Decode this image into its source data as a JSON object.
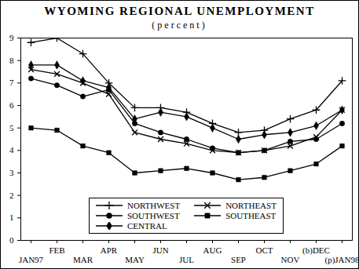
{
  "chart_data": {
    "type": "line",
    "title": "WYOMING REGIONAL UNEMPLOYMENT",
    "subtitle": "(percent)",
    "categories": [
      "JAN97",
      "FEB",
      "MAR",
      "APR",
      "MAY",
      "JUN",
      "JUL",
      "AUG",
      "SEP",
      "OCT",
      "NOV",
      "(b)DEC",
      "(p)JAN98"
    ],
    "series": [
      {
        "name": "NORTHWEST",
        "color": "#000000",
        "marker": "plus",
        "values": [
          8.8,
          9.0,
          8.3,
          7.0,
          5.9,
          5.9,
          5.7,
          5.2,
          4.8,
          4.9,
          5.4,
          5.8,
          7.1
        ]
      },
      {
        "name": "NORTHEAST",
        "color": "#000000",
        "marker": "times",
        "values": [
          7.6,
          7.4,
          7.0,
          6.5,
          4.8,
          4.5,
          4.3,
          4.0,
          3.9,
          4.0,
          4.2,
          4.6,
          5.8
        ]
      },
      {
        "name": "SOUTHWEST",
        "color": "#000000",
        "marker": "circle",
        "values": [
          7.2,
          6.9,
          6.4,
          6.7,
          5.2,
          4.8,
          4.5,
          4.1,
          3.9,
          4.0,
          4.4,
          4.5,
          5.2
        ]
      },
      {
        "name": "SOUTHEAST",
        "color": "#000000",
        "marker": "square",
        "values": [
          5.0,
          4.9,
          4.2,
          3.9,
          3.0,
          3.1,
          3.2,
          3.0,
          2.7,
          2.8,
          3.1,
          3.4,
          4.2
        ]
      },
      {
        "name": "CENTRAL",
        "color": "#000000",
        "marker": "diamond",
        "values": [
          7.8,
          7.8,
          7.1,
          6.8,
          5.4,
          5.7,
          5.5,
          5.0,
          4.5,
          4.7,
          4.8,
          5.1,
          5.8
        ]
      }
    ],
    "ylim": [
      0,
      9
    ],
    "yticks": [
      0,
      1,
      2,
      3,
      4,
      5,
      6,
      7,
      8,
      9
    ],
    "grid": false,
    "legend": "bottom"
  }
}
